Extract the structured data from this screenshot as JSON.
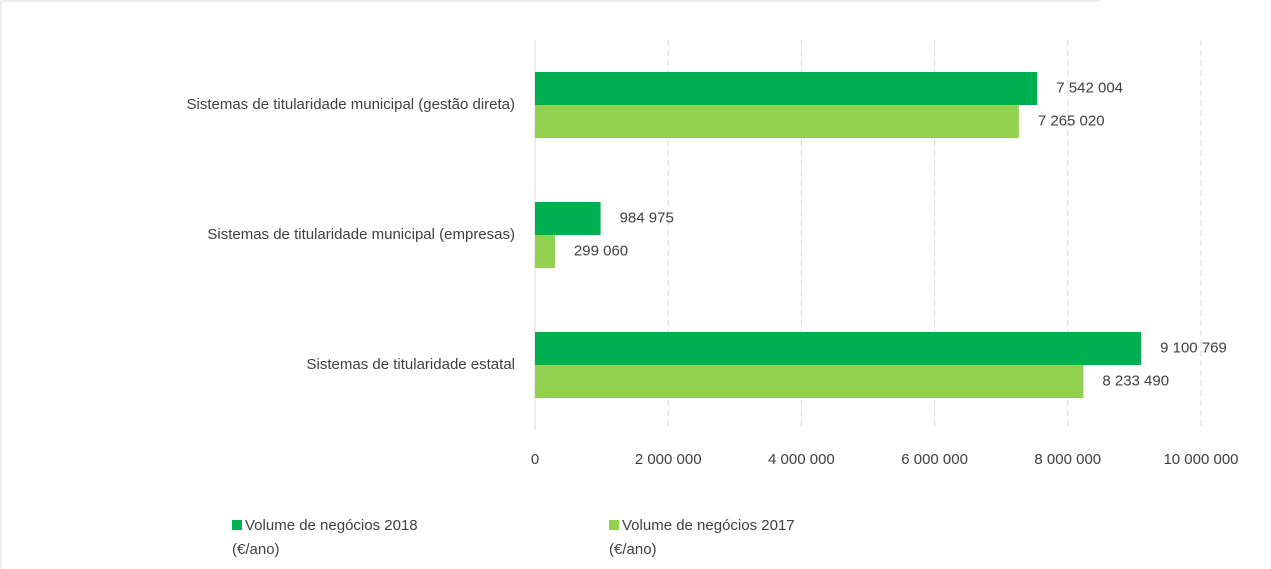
{
  "chart_data": {
    "type": "barh",
    "categories": [
      "Sistemas de titularidade municipal (gestão direta)",
      "Sistemas de titularidade municipal (empresas)",
      "Sistemas de titularidade estatal"
    ],
    "series": [
      {
        "name": "Volume de negócios 2018 (€/ano)",
        "color": "#00b050",
        "values": [
          7542004,
          984975,
          9100769
        ],
        "value_labels": [
          "7 542 004",
          "984 975",
          "9 100 769"
        ]
      },
      {
        "name": "Volume de negócios 2017 (€/ano)",
        "color": "#92d050",
        "values": [
          7265020,
          299060,
          8233490
        ],
        "value_labels": [
          "7 265 020",
          "299 060",
          "8 233 490"
        ]
      }
    ],
    "xlim": [
      0,
      10000000
    ],
    "xticks": [
      0,
      {
        "value": 2000000,
        "label": "2 000 000"
      },
      {
        "value": 4000000,
        "label": "4 000 000"
      },
      {
        "value": 6000000,
        "label": "6 000 000"
      },
      {
        "value": 8000000,
        "label": "8 000 000"
      },
      {
        "value": 10000000,
        "label": "10 000 000"
      }
    ],
    "grid": true,
    "legend": "bottom"
  }
}
